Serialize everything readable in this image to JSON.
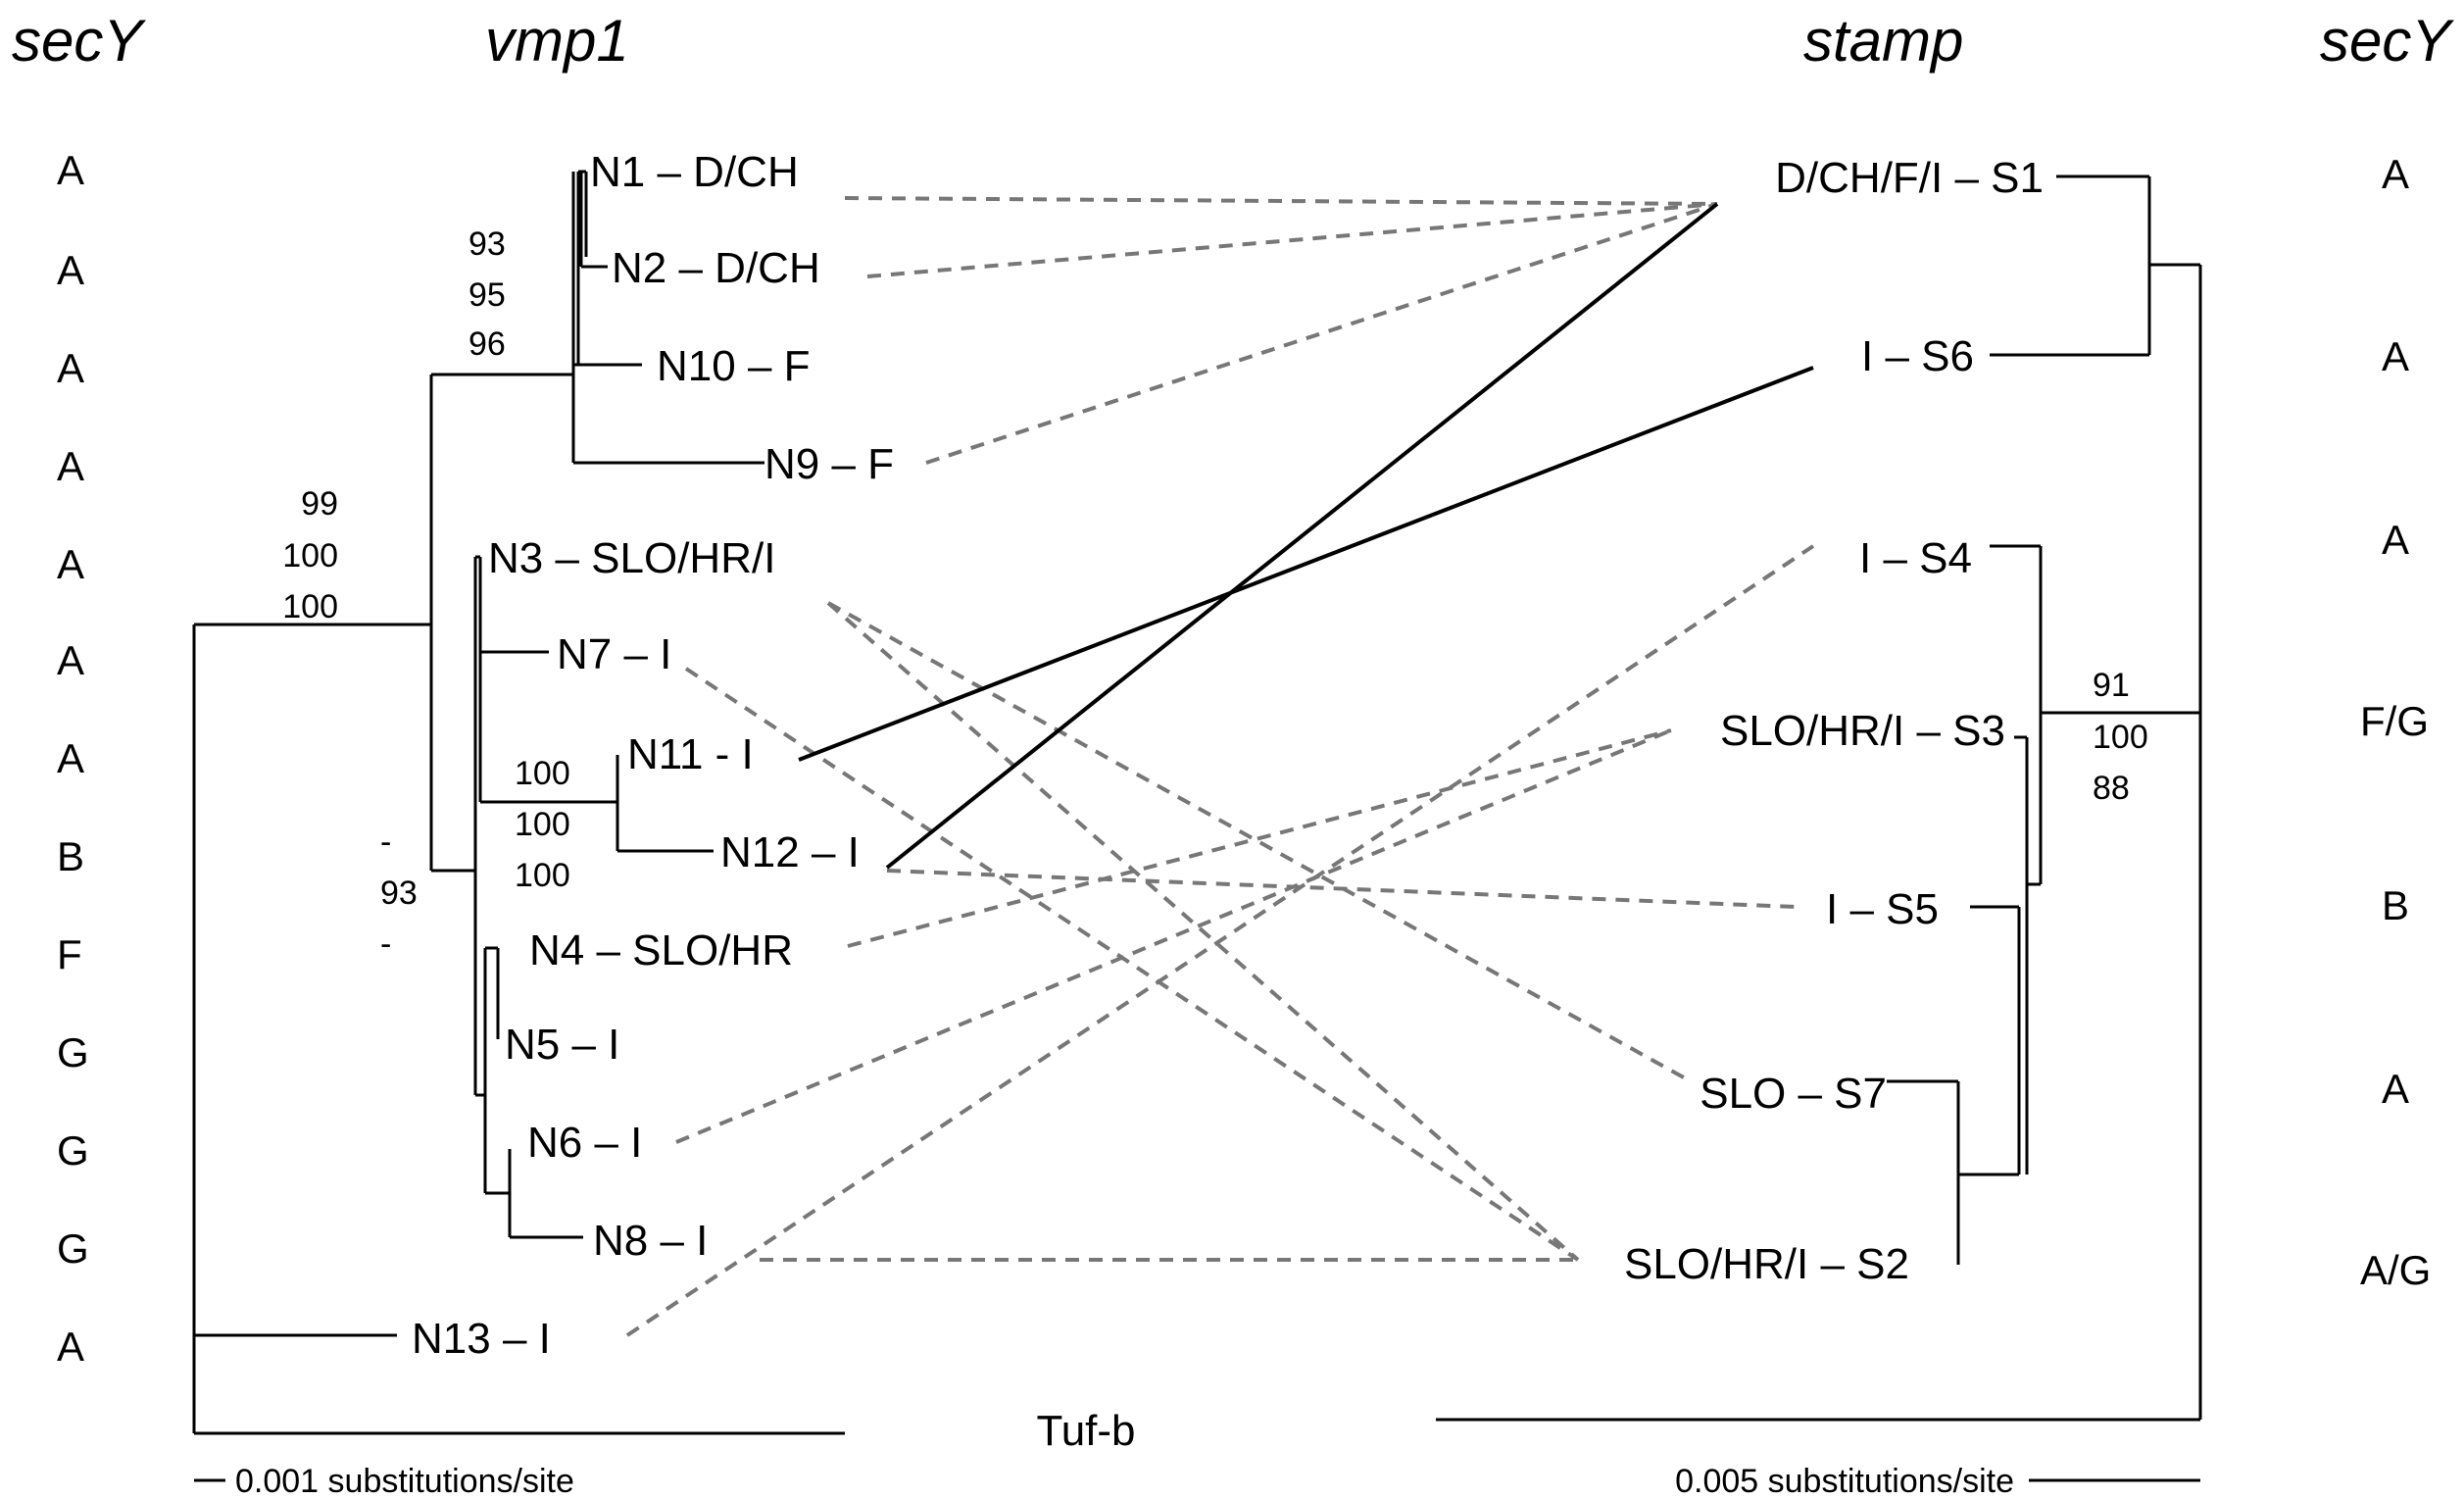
{
  "headers": {
    "secy_left": "secY",
    "vmp1": "vmp1",
    "stamp": "stamp",
    "secy_right": "secY"
  },
  "left_secy": [
    "A",
    "A",
    "A",
    "A",
    "A",
    "A",
    "A",
    "B",
    "F",
    "G",
    "G",
    "G",
    "A"
  ],
  "vmp1_leaves": [
    "N1 – D/CH",
    "N2 – D/CH",
    "N10 – F",
    "N9 – F",
    "N3 – SLO/HR/I",
    "N7 – I",
    "N11 - I",
    "N12 – I",
    "N4 – SLO/HR",
    "N5 – I",
    "N6 – I",
    "N8 – I",
    "N13 – I"
  ],
  "vmp1_bootstrap": {
    "n1_n2_n10": [
      "93",
      "95",
      "96"
    ],
    "main_clade": [
      "99",
      "100",
      "100"
    ],
    "n11_n12": [
      "100",
      "100",
      "100"
    ],
    "lower_clade": [
      "-",
      "93",
      "-"
    ]
  },
  "stamp_leaves": [
    "D/CH/F/I – S1",
    "I – S6",
    "I – S4",
    "SLO/HR/I – S3",
    "I – S5",
    "SLO – S7",
    "SLO/HR/I – S2"
  ],
  "stamp_bootstrap": [
    "91",
    "100",
    "88"
  ],
  "right_secy": [
    "A",
    "A",
    "A",
    "F/G",
    "B",
    "A",
    "A/G"
  ],
  "outgroup": "Tuf-b",
  "scale_left": "0.001 substitutions/site",
  "scale_right": "0.005 substitutions/site",
  "colors": {
    "tree": "#000000",
    "dashed_link": "#777777",
    "solid_link": "#000000"
  }
}
